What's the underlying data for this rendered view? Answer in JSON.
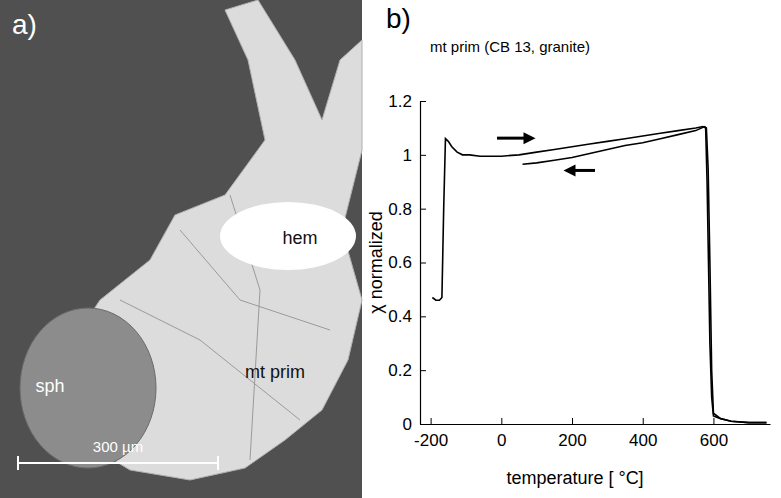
{
  "image_panel": {
    "panel": "a)",
    "labels": [
      "hem",
      "sph",
      "mt prim"
    ],
    "scale_bar": "300 µm"
  },
  "chart_data": {
    "type": "line",
    "panel": "b)",
    "title": "mt prim (CB 13, granite)",
    "x_label": "temperature [ °C]",
    "y_label": "χ normalized",
    "xlim": [
      -230,
      760
    ],
    "xticks": [
      -200,
      0,
      200,
      400,
      600
    ],
    "ylim": [
      0,
      1.2
    ],
    "yticks": [
      0,
      0.2,
      0.4,
      0.6,
      0.8,
      1,
      1.2
    ],
    "grid": false,
    "color": "#000000",
    "series": [
      {
        "color": "#000000",
        "x": [
          -195,
          -185,
          -175,
          -168,
          -163,
          -158,
          -150,
          -140,
          -125,
          -110,
          -90,
          -60,
          -30,
          0,
          50,
          100,
          150,
          200,
          250,
          300,
          350,
          400,
          450,
          500,
          550,
          570,
          578,
          582,
          586,
          590,
          595,
          600,
          620,
          650,
          700,
          750
        ],
        "values": [
          0.47,
          0.46,
          0.46,
          0.47,
          0.8,
          1.06,
          1.05,
          1.03,
          1.01,
          1.0,
          1.0,
          0.995,
          0.995,
          0.995,
          1.0,
          1.01,
          1.02,
          1.03,
          1.04,
          1.05,
          1.06,
          1.07,
          1.08,
          1.09,
          1.1,
          1.105,
          1.1,
          0.9,
          0.6,
          0.3,
          0.1,
          0.03,
          0.02,
          0.01,
          0.005,
          0.005
        ]
      },
      {
        "color": "#000000",
        "x": [
          750,
          700,
          650,
          620,
          600,
          595,
          590,
          585,
          580,
          575,
          550,
          500,
          450,
          400,
          350,
          300,
          250,
          200,
          150,
          100,
          60
        ],
        "values": [
          0.005,
          0.005,
          0.01,
          0.02,
          0.04,
          0.2,
          0.6,
          0.95,
          1.1,
          1.105,
          1.09,
          1.075,
          1.06,
          1.045,
          1.035,
          1.02,
          1.005,
          0.99,
          0.98,
          0.97,
          0.965
        ]
      }
    ]
  }
}
